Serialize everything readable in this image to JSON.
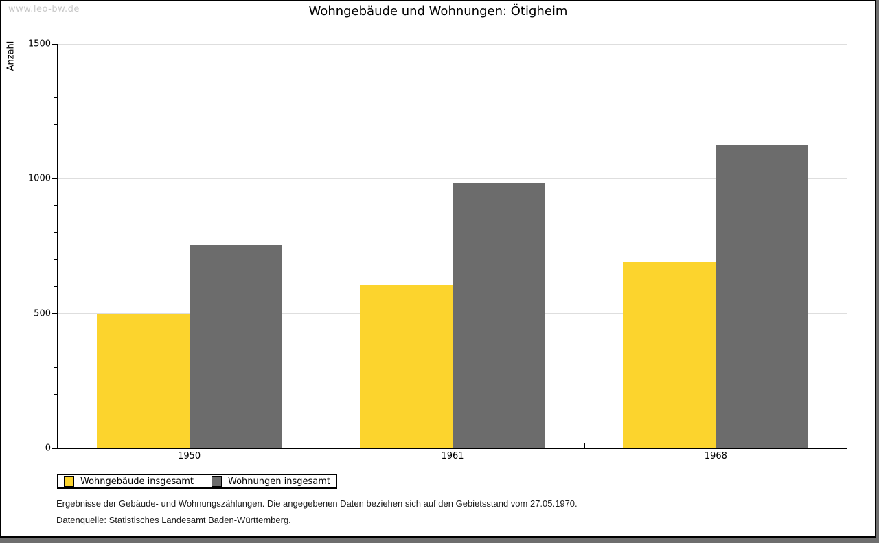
{
  "watermark": "www.leo-bw.de",
  "title": "Wohngebäude und Wohnungen: Ötigheim",
  "chart_data": {
    "type": "bar",
    "title": "Wohngebäude und Wohnungen: Ötigheim",
    "categories": [
      "1950",
      "1961",
      "1968"
    ],
    "series": [
      {
        "name": "Wohngebäude insgesamt",
        "color": "#FCD42D",
        "values": [
          495,
          604,
          689
        ]
      },
      {
        "name": "Wohnungen insgesamt",
        "color": "#6C6C6C",
        "values": [
          752,
          984,
          1124
        ]
      }
    ],
    "xlabel": "",
    "ylabel": "Anzahl",
    "ylim": [
      0,
      1500
    ],
    "y_major_step": 500,
    "y_minor_step": 100,
    "y_major_tick_labels": [
      "0",
      "500",
      "1000",
      "1500"
    ],
    "grid": "horizontal-major",
    "legend_position": "bottom-left",
    "bar_gap_within_pair": 0
  },
  "footnotes": [
    "Ergebnisse der Gebäude- und Wohnungszählungen. Die angegebenen Daten beziehen sich auf den Gebietsstand vom 27.05.1970.",
    "Datenquelle: Statistisches Landesamt Baden-Württemberg."
  ],
  "colors": {
    "bar_yellow": "#FCD42D",
    "bar_gray": "#6C6C6C",
    "gridline": "#DEDEDE",
    "watermark": "#C9C9C9",
    "frame_shadow": "#6E6E6E",
    "axis": "#000000",
    "background": "#FFFFFF"
  }
}
